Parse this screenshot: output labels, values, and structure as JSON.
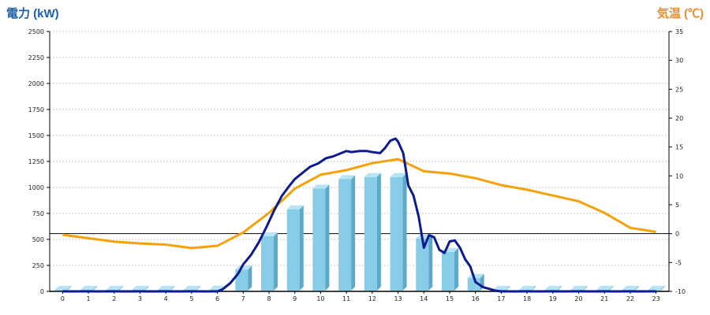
{
  "colors": {
    "power_title": "#1d5fa6",
    "temp_title": "#f08c2c",
    "bar_front": "#87cde8",
    "bar_top": "#b6e4f5",
    "bar_side": "#5ea8c8",
    "power_line": "#0d1b8e",
    "temp_line": "#f5a20a",
    "grid": "#c8c8c8",
    "zero_line": "#000000"
  },
  "chart_data": {
    "type": "bar",
    "left_title": "電力 (kW)",
    "right_title": "気温 (℃)",
    "categories": [
      "0",
      "1",
      "2",
      "3",
      "4",
      "5",
      "6",
      "7",
      "8",
      "9",
      "10",
      "11",
      "12",
      "13",
      "14",
      "15",
      "16",
      "17",
      "18",
      "19",
      "20",
      "21",
      "22",
      "23"
    ],
    "y_left_range": [
      0,
      2500
    ],
    "y_left_ticks": [
      "0",
      "250",
      "500",
      "750",
      "1000",
      "1250",
      "1500",
      "1750",
      "2000",
      "2250",
      "2500"
    ],
    "y_right_range": [
      -10,
      35
    ],
    "y_right_ticks": [
      "-10",
      "-5",
      "0",
      "5",
      "10",
      "15",
      "20",
      "25",
      "30",
      "35"
    ],
    "grid": true,
    "bars": {
      "axis": "left",
      "values": [
        0,
        0,
        0,
        0,
        0,
        0,
        0,
        210,
        530,
        790,
        990,
        1080,
        1100,
        1100,
        510,
        380,
        130,
        0,
        0,
        0,
        0,
        0,
        0,
        0
      ]
    },
    "power_line": {
      "axis": "left",
      "x": [
        6.0,
        6.2,
        6.5,
        6.8,
        7.0,
        7.3,
        7.6,
        7.9,
        8.2,
        8.5,
        8.8,
        9.0,
        9.3,
        9.6,
        9.9,
        10.2,
        10.5,
        10.8,
        11.0,
        11.2,
        11.5,
        11.8,
        12.0,
        12.3,
        12.5,
        12.7,
        12.9,
        13.0,
        13.2,
        13.4,
        13.6,
        13.8,
        14.0,
        14.2,
        14.4,
        14.6,
        14.8,
        15.0,
        15.2,
        15.4,
        15.6,
        15.8,
        16.0,
        16.3,
        16.6,
        16.8,
        17.0
      ],
      "y": [
        0,
        20,
        80,
        170,
        260,
        350,
        470,
        620,
        780,
        920,
        1020,
        1080,
        1140,
        1200,
        1230,
        1280,
        1300,
        1330,
        1350,
        1340,
        1350,
        1350,
        1340,
        1330,
        1380,
        1450,
        1470,
        1440,
        1330,
        1020,
        920,
        720,
        420,
        540,
        520,
        400,
        370,
        480,
        490,
        420,
        310,
        240,
        90,
        40,
        20,
        5,
        0
      ]
    },
    "temp_line": {
      "axis": "right",
      "values": [
        -0.2,
        -0.8,
        -1.4,
        -1.7,
        -1.9,
        -2.5,
        -2.1,
        0.2,
        3.6,
        7.8,
        10.2,
        11.0,
        12.2,
        12.9,
        10.8,
        10.4,
        9.6,
        8.4,
        7.6,
        6.6,
        5.6,
        3.6,
        1.0,
        0.3
      ]
    }
  }
}
